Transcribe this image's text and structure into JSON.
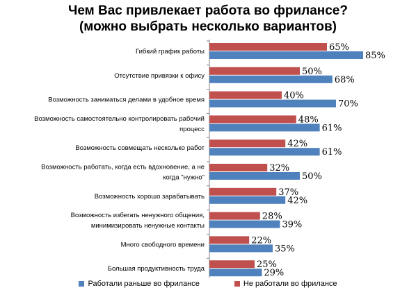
{
  "title": {
    "line1": "Чем Вас привлекает работа во фрилансе?",
    "line2": "(можно выбрать несколько вариантов)"
  },
  "colors": {
    "series_before": "#4F81BD",
    "series_never": "#C0504D"
  },
  "chart_data": {
    "type": "bar",
    "orientation": "horizontal",
    "categories": [
      [
        "Гибкий график работы"
      ],
      [
        "Отсутствие привязки к офису"
      ],
      [
        "Возможность заниматься делами в удобное время"
      ],
      [
        "Возможность самостоятельно контролировать рабочий",
        "процесс"
      ],
      [
        "Возможность совмещать несколько работ"
      ],
      [
        "Возможность работать, когда есть вдохновение, а не",
        "когда \"нужно\""
      ],
      [
        "Возможность хорошо зарабатывать"
      ],
      [
        "Возможность избегать ненужного общения,",
        "минимизировать ненужные контакты"
      ],
      [
        "Много свободного времени"
      ],
      [
        "Большая продуктивность труда"
      ]
    ],
    "series": [
      {
        "name": "Не работали во фрилансе",
        "values": [
          65,
          50,
          40,
          48,
          42,
          32,
          37,
          28,
          22,
          25
        ]
      },
      {
        "name": "Работали раньше во фрилансе",
        "values": [
          85,
          68,
          70,
          61,
          61,
          50,
          42,
          39,
          35,
          29
        ]
      }
    ],
    "value_suffix": "%",
    "xlim": [
      0,
      100
    ],
    "grid": false,
    "legend_position": "bottom"
  }
}
